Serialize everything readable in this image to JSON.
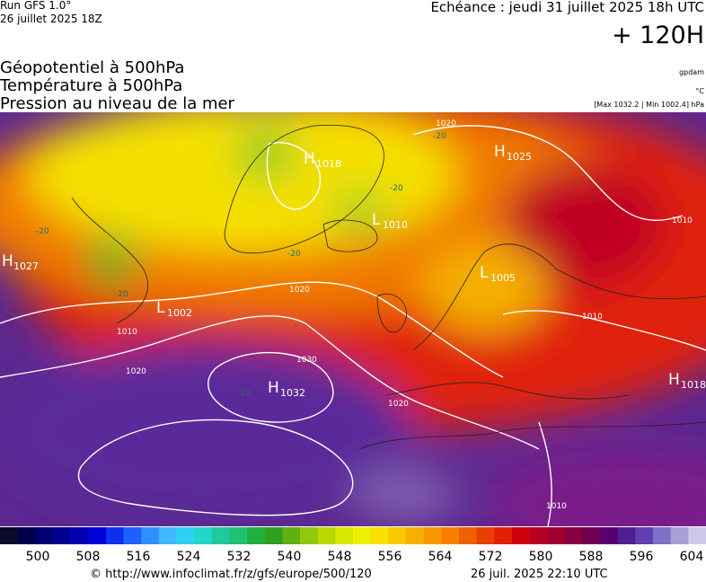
{
  "header": {
    "run": "Run GFS 1.0°",
    "date": "26 juillet 2025 18Z",
    "echeance": "Echéance : jeudi 31 juillet 2025 18h UTC",
    "lead": "+ 120H"
  },
  "titles": [
    "Géopotentiel à 500hPa",
    "Température à 500hPa",
    "Pression au niveau de la mer"
  ],
  "units": [
    "gpdam",
    "°C",
    "[Max 1032.2 | Min 1002.4] hPa"
  ],
  "pressure_centers": [
    {
      "letter": "H",
      "value": 1027
    },
    {
      "letter": "L",
      "value": 1002
    },
    {
      "letter": "H",
      "value": 1018
    },
    {
      "letter": "L",
      "value": 1010
    },
    {
      "letter": "H",
      "value": 1025
    },
    {
      "letter": "L",
      "value": 1005
    },
    {
      "letter": "H",
      "value": 1032
    },
    {
      "letter": "H",
      "value": 1018
    }
  ],
  "isobar_labels": [
    1020,
    1020,
    1010,
    1020,
    1030,
    1020,
    1010,
    1010,
    1010
  ],
  "isotherm_labels": [
    -20,
    -20,
    -20,
    -20,
    -20,
    -10
  ],
  "colorbar": {
    "ticks": [
      500,
      508,
      516,
      524,
      532,
      540,
      548,
      556,
      564,
      572,
      580,
      588,
      596,
      604
    ],
    "colors": [
      "#0a0a2a",
      "#00004a",
      "#000070",
      "#000090",
      "#0000b0",
      "#0000d8",
      "#1030f0",
      "#2060ff",
      "#3090ff",
      "#40b8ff",
      "#30d0f0",
      "#20d8c8",
      "#20c8a0",
      "#20c070",
      "#20b040",
      "#30a020",
      "#60b010",
      "#90c810",
      "#b8d800",
      "#d8e800",
      "#f0f000",
      "#f8e000",
      "#f8c800",
      "#f8b000",
      "#f89800",
      "#f88000",
      "#f06000",
      "#e84000",
      "#e02000",
      "#d00010",
      "#b80020",
      "#a00030",
      "#880040",
      "#700050",
      "#580070",
      "#502090",
      "#6040b0",
      "#8070c8",
      "#a8a0d8",
      "#d0c8e8"
    ]
  },
  "footer": {
    "url": "© http://www.infoclimat.fr/z/gfs/europe/500/120",
    "timestamp": "26 juil. 2025 22:10 UTC"
  }
}
